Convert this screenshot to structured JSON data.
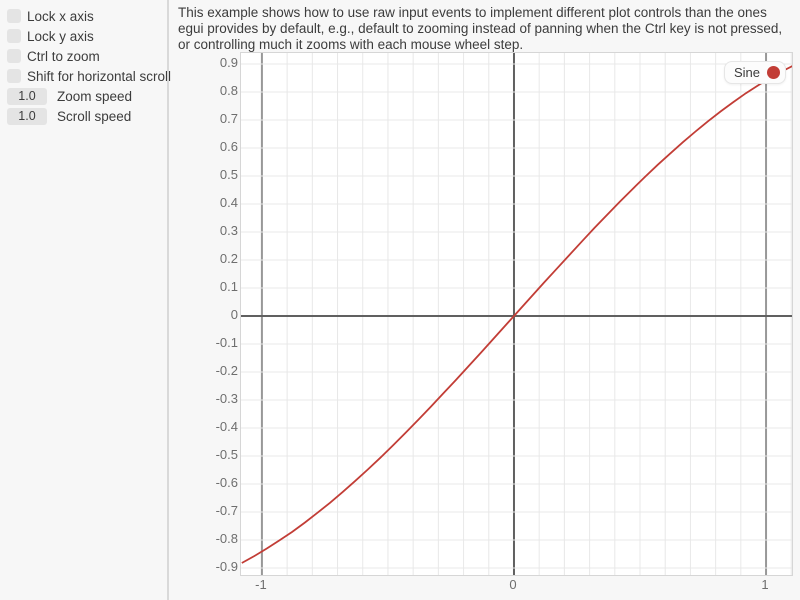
{
  "colors": {
    "panel_bg": "#f7f7f7",
    "plot_bg": "#ffffff",
    "text": "#3c3c3c",
    "tick_text": "#6e6e6e",
    "widget_bg": "#e4e4e4",
    "separator": "#d9d9d9",
    "grid_minor": "#e8e8e8",
    "grid_unit": "#989898",
    "grid_zero": "#606060",
    "curve": "#c23d36"
  },
  "sidebar": {
    "checkboxes": [
      {
        "label": "Lock x axis",
        "checked": false
      },
      {
        "label": "Lock y axis",
        "checked": false
      },
      {
        "label": "Ctrl to zoom",
        "checked": false
      },
      {
        "label": "Shift for horizontal scroll",
        "checked": false
      }
    ],
    "drag_values": [
      {
        "value": "1.0",
        "label": "Zoom speed"
      },
      {
        "value": "1.0",
        "label": "Scroll speed"
      }
    ]
  },
  "main": {
    "description": "This example shows how to use raw input events to implement different plot controls than the ones egui provides by default, e.g., default to zooming instead of panning when the Ctrl key is not pressed, or controlling much it zooms with each mouse wheel step."
  },
  "chart_data": {
    "type": "line",
    "title": "",
    "xlabel": "",
    "ylabel": "",
    "xlim": [
      -1.083,
      1.103
    ],
    "ylim": [
      -0.925,
      0.9395
    ],
    "grid_step": 0.1,
    "grid": true,
    "legend": {
      "label": "Sine",
      "position": "top-right"
    },
    "x_ticks": [
      {
        "v": -1,
        "label": "-1"
      },
      {
        "v": 0,
        "label": "0"
      },
      {
        "v": 1,
        "label": "1"
      }
    ],
    "y_ticks": [
      {
        "v": 0.9,
        "label": "0.9"
      },
      {
        "v": 0.8,
        "label": "0.8"
      },
      {
        "v": 0.7,
        "label": "0.7"
      },
      {
        "v": 0.6,
        "label": "0.6"
      },
      {
        "v": 0.5,
        "label": "0.5"
      },
      {
        "v": 0.4,
        "label": "0.4"
      },
      {
        "v": 0.3,
        "label": "0.3"
      },
      {
        "v": 0.2,
        "label": "0.2"
      },
      {
        "v": 0.1,
        "label": "0.1"
      },
      {
        "v": 0,
        "label": "0"
      },
      {
        "v": -0.1,
        "label": "-0.1"
      },
      {
        "v": -0.2,
        "label": "-0.2"
      },
      {
        "v": -0.3,
        "label": "-0.3"
      },
      {
        "v": -0.4,
        "label": "-0.4"
      },
      {
        "v": -0.5,
        "label": "-0.5"
      },
      {
        "v": -0.6,
        "label": "-0.6"
      },
      {
        "v": -0.7,
        "label": "-0.7"
      },
      {
        "v": -0.8,
        "label": "-0.8"
      },
      {
        "v": -0.9,
        "label": "-0.9"
      }
    ],
    "series": [
      {
        "name": "Sine",
        "color": "#c23d36",
        "points": [
          [
            -1.08,
            -0.882
          ],
          [
            -1.03,
            -0.857
          ],
          [
            -0.98,
            -0.83
          ],
          [
            -0.93,
            -0.801
          ],
          [
            -0.88,
            -0.771
          ],
          [
            -0.83,
            -0.738
          ],
          [
            -0.78,
            -0.703
          ],
          [
            -0.73,
            -0.667
          ],
          [
            -0.68,
            -0.629
          ],
          [
            -0.63,
            -0.589
          ],
          [
            -0.58,
            -0.548
          ],
          [
            -0.53,
            -0.506
          ],
          [
            -0.48,
            -0.462
          ],
          [
            -0.43,
            -0.417
          ],
          [
            -0.38,
            -0.371
          ],
          [
            -0.33,
            -0.324
          ],
          [
            -0.28,
            -0.276
          ],
          [
            -0.23,
            -0.228
          ],
          [
            -0.18,
            -0.179
          ],
          [
            -0.13,
            -0.13
          ],
          [
            -0.08,
            -0.08
          ],
          [
            -0.03,
            -0.03
          ],
          [
            0.02,
            0.02
          ],
          [
            0.07,
            0.07
          ],
          [
            0.12,
            0.12
          ],
          [
            0.17,
            0.169
          ],
          [
            0.22,
            0.218
          ],
          [
            0.27,
            0.267
          ],
          [
            0.32,
            0.315
          ],
          [
            0.37,
            0.362
          ],
          [
            0.42,
            0.408
          ],
          [
            0.47,
            0.453
          ],
          [
            0.52,
            0.497
          ],
          [
            0.57,
            0.54
          ],
          [
            0.62,
            0.581
          ],
          [
            0.67,
            0.621
          ],
          [
            0.72,
            0.659
          ],
          [
            0.77,
            0.696
          ],
          [
            0.82,
            0.731
          ],
          [
            0.87,
            0.764
          ],
          [
            0.92,
            0.796
          ],
          [
            0.97,
            0.825
          ],
          [
            1.02,
            0.852
          ],
          [
            1.07,
            0.877
          ],
          [
            1.12,
            0.9
          ]
        ]
      }
    ]
  }
}
